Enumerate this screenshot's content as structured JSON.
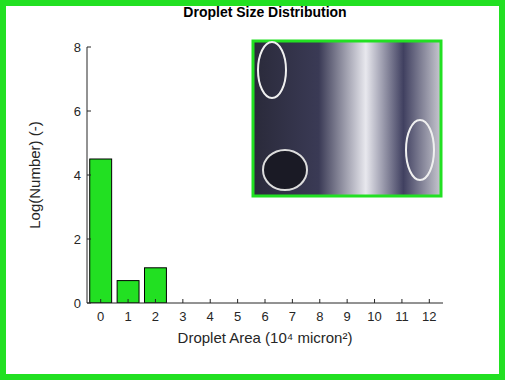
{
  "chart_data": {
    "type": "bar",
    "title": "Droplet Size Distribution",
    "x_label": "Droplet Area (10⁴ micron²)",
    "y_label": "Log(Number) (-)",
    "x": [
      0,
      1,
      2
    ],
    "values": [
      4.5,
      0.7,
      1.1
    ],
    "color": "#22e022",
    "xlim": [
      -0.5,
      12.5
    ],
    "xticks": [
      0,
      1,
      2,
      3,
      4,
      5,
      6,
      7,
      8,
      9,
      10,
      11,
      12
    ],
    "ylim": [
      0,
      8
    ],
    "yticks": [
      0,
      2,
      4,
      6,
      8
    ],
    "grid": false
  }
}
